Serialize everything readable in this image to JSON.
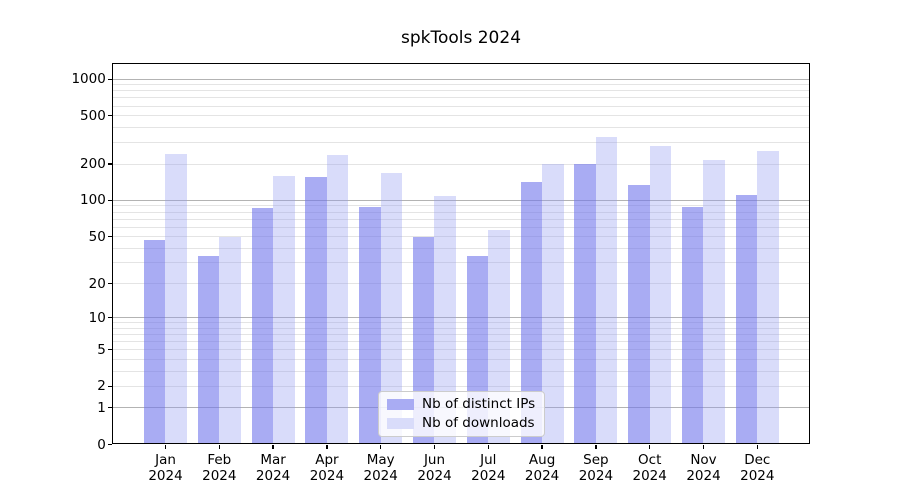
{
  "chart_data": {
    "type": "bar",
    "title": "spkTools 2024",
    "categories": [
      "Jan",
      "Feb",
      "Mar",
      "Apr",
      "May",
      "Jun",
      "Jul",
      "Aug",
      "Sep",
      "Oct",
      "Nov",
      "Dec"
    ],
    "x_year_label": "2024",
    "series": [
      {
        "name": "Nb of distinct IPs",
        "color": "rgba(112,117,235,0.6)",
        "swatch": "#a9acf3",
        "values": [
          47,
          34,
          86,
          157,
          88,
          50,
          34,
          141,
          200,
          134,
          88,
          110
        ]
      },
      {
        "name": "Nb of downloads",
        "color": "rgba(146,155,241,0.35)",
        "swatch": "#d9dcfa",
        "values": [
          240,
          50,
          160,
          236,
          170,
          108,
          57,
          202,
          335,
          280,
          214,
          255
        ]
      }
    ],
    "yscale": "log1p",
    "ylim": [
      0,
      1350
    ],
    "yticks": [
      0,
      1,
      2,
      5,
      10,
      20,
      50,
      100,
      200,
      500,
      1000
    ],
    "ytick_labels": [
      "0",
      "1",
      "2",
      "5",
      "10",
      "20",
      "50",
      "100",
      "200",
      "500",
      "1000"
    ],
    "grid": {
      "major": [
        1,
        10,
        100,
        1000
      ],
      "minor": [
        2,
        3,
        4,
        5,
        6,
        7,
        8,
        9,
        20,
        30,
        40,
        50,
        60,
        70,
        80,
        90,
        200,
        300,
        400,
        500,
        600,
        700,
        800,
        900
      ]
    },
    "legend": {
      "position": "lower center"
    }
  }
}
